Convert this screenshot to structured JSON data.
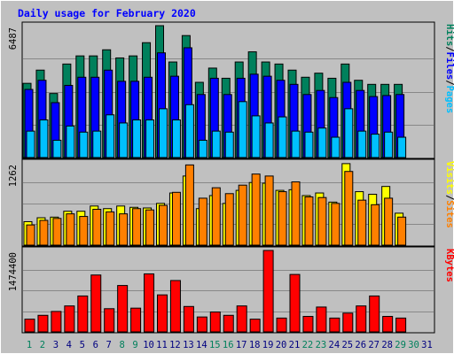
{
  "title": "Daily usage for February 2020",
  "colors": {
    "background": "#c0c0c0",
    "title": "#0000ff",
    "hits": "#00805c",
    "files": "#0000ff",
    "pages": "#00c0ff",
    "visits": "#ffff00",
    "sites": "#ff8000",
    "kbytes": "#ff0000",
    "day_weekday": "#000080",
    "day_weekend": "#00805c"
  },
  "chart_data": [
    {
      "type": "bar",
      "name": "hits-files-pages",
      "max_label": "6487",
      "legend": [
        "Pages",
        "Files",
        "Hits"
      ],
      "ylim": [
        0,
        6487
      ],
      "categories": [
        "1",
        "2",
        "3",
        "4",
        "5",
        "6",
        "7",
        "8",
        "9",
        "10",
        "11",
        "12",
        "13",
        "14",
        "15",
        "16",
        "17",
        "18",
        "19",
        "20",
        "21",
        "22",
        "23",
        "24",
        "25",
        "26",
        "27",
        "28",
        "29",
        "30",
        "31"
      ],
      "series": [
        {
          "name": "Hits",
          "values": [
            3650,
            4300,
            3150,
            4600,
            5000,
            5000,
            5300,
            4900,
            5000,
            5650,
            6487,
            4700,
            6000,
            3700,
            4400,
            3900,
            4700,
            5200,
            4700,
            4600,
            4300,
            3950,
            4150,
            3900,
            4600,
            3800,
            3600,
            3600,
            3600,
            0,
            0
          ]
        },
        {
          "name": "Files",
          "values": [
            3350,
            3800,
            2700,
            3550,
            3950,
            3950,
            4300,
            3750,
            3750,
            3950,
            5150,
            4000,
            5400,
            3100,
            3900,
            3100,
            3900,
            4100,
            4000,
            3800,
            3600,
            3100,
            3300,
            2950,
            3700,
            3300,
            3000,
            3050,
            3100,
            0,
            0
          ]
        },
        {
          "name": "Pages",
          "values": [
            1300,
            1850,
            850,
            1550,
            1250,
            1300,
            2100,
            1700,
            1850,
            1850,
            2400,
            1850,
            2600,
            850,
            1300,
            1250,
            2750,
            2050,
            1700,
            2000,
            1300,
            1250,
            1450,
            1000,
            2400,
            1300,
            1150,
            1250,
            1000,
            0,
            0
          ]
        }
      ]
    },
    {
      "type": "bar",
      "name": "visits-sites",
      "max_label": "1262",
      "legend": [
        "Sites",
        "Visits"
      ],
      "ylim": [
        0,
        1262
      ],
      "categories": [
        "1",
        "2",
        "3",
        "4",
        "5",
        "6",
        "7",
        "8",
        "9",
        "10",
        "11",
        "12",
        "13",
        "14",
        "15",
        "16",
        "17",
        "18",
        "19",
        "20",
        "21",
        "22",
        "23",
        "24",
        "25",
        "26",
        "27",
        "28",
        "29",
        "30",
        "31"
      ],
      "series": [
        {
          "name": "Visits",
          "values": [
            360,
            420,
            430,
            520,
            520,
            600,
            560,
            600,
            580,
            570,
            640,
            800,
            1060,
            560,
            760,
            640,
            840,
            960,
            950,
            840,
            850,
            760,
            800,
            660,
            1250,
            820,
            780,
            900,
            490,
            0,
            0
          ]
        },
        {
          "name": "Sites",
          "values": [
            310,
            380,
            410,
            480,
            440,
            550,
            510,
            480,
            560,
            540,
            610,
            810,
            1230,
            720,
            880,
            790,
            920,
            1090,
            1060,
            820,
            970,
            740,
            730,
            640,
            1130,
            690,
            620,
            720,
            430,
            0,
            0
          ]
        }
      ]
    },
    {
      "type": "bar",
      "name": "kbytes",
      "max_label": "1474400",
      "legend": [
        "KBytes"
      ],
      "ylim": [
        0,
        1474400
      ],
      "categories": [
        "1",
        "2",
        "3",
        "4",
        "5",
        "6",
        "7",
        "8",
        "9",
        "10",
        "11",
        "12",
        "13",
        "14",
        "15",
        "16",
        "17",
        "18",
        "19",
        "20",
        "21",
        "22",
        "23",
        "24",
        "25",
        "26",
        "27",
        "28",
        "29",
        "30",
        "31"
      ],
      "series": [
        {
          "name": "KBytes",
          "values": [
            230000,
            300000,
            370000,
            470000,
            650000,
            1030000,
            420000,
            840000,
            430000,
            1050000,
            670000,
            930000,
            460000,
            270000,
            360000,
            300000,
            470000,
            230000,
            1474400,
            250000,
            1040000,
            280000,
            450000,
            250000,
            340000,
            470000,
            650000,
            280000,
            250000,
            0,
            0
          ]
        }
      ]
    }
  ]
}
